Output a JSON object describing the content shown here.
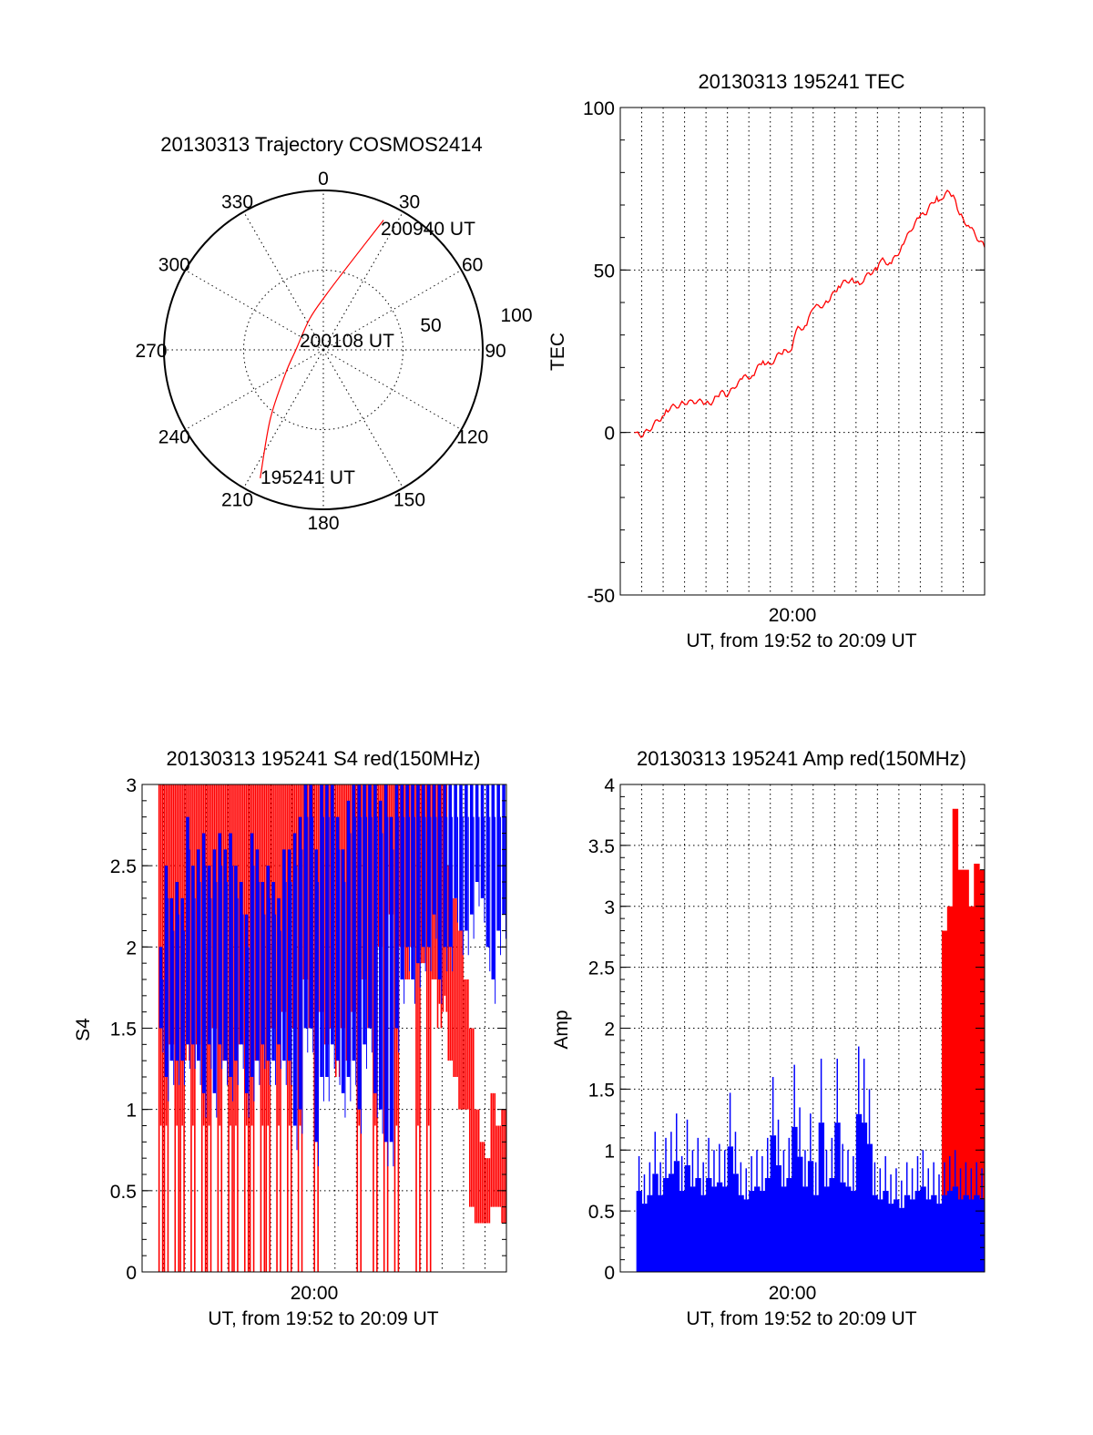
{
  "chart_data": [
    {
      "type": "polar",
      "title": "20130313 Trajectory COSMOS2414",
      "azimuth_labels": [
        "0",
        "30",
        "60",
        "90",
        "120",
        "150",
        "180",
        "210",
        "240",
        "270",
        "300",
        "330"
      ],
      "radial_labels": [
        "50",
        "100"
      ],
      "rlim": [
        0,
        100
      ],
      "annotations": [
        "200940 UT",
        "200108 UT",
        "195241 UT"
      ],
      "trajectory": {
        "color": "#ff0000",
        "az_deg": [
          206.2,
          217.5,
          238,
          271,
          336,
          3,
          16.8,
          24.9
        ],
        "r": [
          89.7,
          54.7,
          28,
          17.1,
          21.2,
          34.7,
          56,
          89.7
        ]
      }
    },
    {
      "type": "line",
      "title": "20130313 195241 TEC",
      "ylabel": "TEC",
      "xlabel": "UT, from 19:52 to 20:09 UT",
      "x_tick_label": "20:00",
      "x_units": "minutes after 19:52",
      "xlim": [
        0,
        17
      ],
      "ylim": [
        -50,
        100
      ],
      "y_ticks": [
        "100",
        "50",
        "0",
        "-50"
      ],
      "grid": true,
      "series": [
        {
          "name": "TEC",
          "color": "#ff0000",
          "x": [
            0.66,
            0.97,
            1.97,
            2.14,
            2.96,
            3.27,
            3.98,
            4.33,
            4.68,
            4.99,
            5.6,
            6.16,
            6.66,
            6.98,
            7.64,
            8.0,
            8.21,
            8.7,
            8.98,
            9.69,
            10.18,
            10.82,
            11.17,
            11.52,
            11.99,
            12.16,
            12.65,
            13.22,
            13.85,
            14.2,
            14.77,
            14.91,
            15.26,
            15.54,
            15.83,
            16.32,
            17.0
          ],
          "y": [
            0,
            -1.5,
            5,
            7,
            9,
            10,
            9,
            9.5,
            12.5,
            11,
            16.5,
            17.5,
            22,
            21,
            25.5,
            25.5,
            31.5,
            33,
            38,
            40,
            45,
            47.5,
            45.5,
            49,
            50,
            53,
            52,
            58,
            66,
            67,
            72.5,
            71.5,
            74.5,
            73,
            67,
            63,
            57
          ]
        }
      ]
    },
    {
      "type": "bar",
      "title": "20130313 195241 S4 red(150MHz)",
      "ylabel": "S4",
      "xlabel": "UT, from 19:52 to 20:09 UT",
      "x_tick_label": "20:00",
      "x_units": "minutes after 19:52",
      "xlim": [
        0,
        17
      ],
      "ylim": [
        0,
        3
      ],
      "y_ticks": [
        "3",
        "2.5",
        "2",
        "1.5",
        "1",
        "0.5",
        "0"
      ],
      "grid": true,
      "bin_start": 0.75,
      "bin_step": 0.25,
      "series": [
        {
          "name": "red",
          "color": "#ff0000",
          "ranges": [
            [
              0,
              3
            ],
            [
              0,
              3
            ],
            [
              1.4,
              3
            ],
            [
              0,
              3
            ],
            [
              0,
              3
            ],
            [
              1.3,
              3
            ],
            [
              0,
              3
            ],
            [
              1.4,
              3
            ],
            [
              0,
              3
            ],
            [
              0,
              3
            ],
            [
              1.5,
              3
            ],
            [
              0,
              3
            ],
            [
              1.3,
              3
            ],
            [
              0,
              3
            ],
            [
              0,
              3
            ],
            [
              1.4,
              3
            ],
            [
              0,
              3
            ],
            [
              0,
              3
            ],
            [
              1.3,
              3
            ],
            [
              0,
              3
            ],
            [
              0,
              3
            ],
            [
              1.5,
              3
            ],
            [
              0,
              3
            ],
            [
              1.6,
              3
            ],
            [
              0,
              3
            ],
            [
              1.5,
              3
            ],
            [
              0,
              3
            ],
            [
              1.8,
              3
            ],
            [
              1.5,
              3
            ],
            [
              0,
              3
            ],
            [
              1.6,
              3
            ],
            [
              1.4,
              3
            ],
            [
              1.5,
              3
            ],
            [
              1.2,
              3
            ],
            [
              1.5,
              3
            ],
            [
              1.3,
              3
            ],
            [
              1.6,
              3
            ],
            [
              0,
              3
            ],
            [
              1.8,
              3
            ],
            [
              1.5,
              3
            ],
            [
              0,
              3
            ],
            [
              2.0,
              3
            ],
            [
              0,
              3
            ],
            [
              2.2,
              3
            ],
            [
              0,
              3
            ],
            [
              2.0,
              3
            ],
            [
              1.8,
              3
            ],
            [
              2.0,
              3
            ],
            [
              0,
              3
            ],
            [
              1.9,
              3
            ],
            [
              0,
              3
            ],
            [
              1.8,
              3
            ],
            [
              1.5,
              3
            ],
            [
              1.6,
              3
            ],
            [
              1.3,
              2.5
            ],
            [
              1.2,
              2.3
            ],
            [
              1.0,
              2.1
            ],
            [
              1.0,
              1.8
            ],
            [
              0.4,
              1.5
            ],
            [
              0.3,
              1.0
            ],
            [
              0.3,
              0.8
            ],
            [
              0.3,
              0.7
            ],
            [
              0.4,
              1.1
            ],
            [
              0.4,
              0.9
            ],
            [
              0.3,
              1.0
            ]
          ]
        },
        {
          "name": "blue",
          "color": "#0000ff",
          "ranges": [
            [
              1.5,
              2.0
            ],
            [
              1.2,
              2.5
            ],
            [
              1.3,
              2.3
            ],
            [
              1.3,
              2.4
            ],
            [
              1.3,
              2.3
            ],
            [
              1.4,
              2.8
            ],
            [
              1.4,
              2.5
            ],
            [
              1.3,
              2.6
            ],
            [
              1.1,
              2.7
            ],
            [
              1.4,
              2.5
            ],
            [
              1.1,
              2.6
            ],
            [
              1.4,
              2.7
            ],
            [
              1.3,
              2.6
            ],
            [
              1.2,
              2.7
            ],
            [
              1.3,
              2.5
            ],
            [
              1.4,
              2.4
            ],
            [
              1.1,
              2.2
            ],
            [
              1.2,
              2.7
            ],
            [
              1.3,
              2.6
            ],
            [
              1.4,
              2.4
            ],
            [
              1.3,
              2.5
            ],
            [
              1.3,
              2.4
            ],
            [
              1.4,
              2.3
            ],
            [
              1.3,
              2.6
            ],
            [
              1.3,
              2.6
            ],
            [
              0.9,
              2.7
            ],
            [
              1.0,
              2.8
            ],
            [
              1.5,
              3.0
            ],
            [
              1.5,
              3.0
            ],
            [
              0.8,
              2.6
            ],
            [
              1.2,
              3.0
            ],
            [
              1.2,
              3.0
            ],
            [
              1.4,
              3.0
            ],
            [
              1.3,
              2.8
            ],
            [
              1.1,
              2.6
            ],
            [
              1.2,
              2.9
            ],
            [
              1.3,
              3.0
            ],
            [
              1.0,
              3.0
            ],
            [
              1.4,
              3.0
            ],
            [
              1.5,
              3.0
            ],
            [
              1.1,
              3.0
            ],
            [
              1.0,
              2.9
            ],
            [
              0.8,
              3.0
            ],
            [
              0.8,
              2.8
            ],
            [
              1.5,
              3.0
            ],
            [
              1.8,
              3.0
            ],
            [
              2.0,
              3.0
            ],
            [
              1.8,
              3.0
            ],
            [
              1.9,
              3.0
            ],
            [
              2.0,
              3.0
            ],
            [
              2.0,
              3.0
            ],
            [
              2.2,
              3.0
            ],
            [
              1.8,
              3.0
            ],
            [
              2.0,
              3.0
            ],
            [
              2.0,
              3.0
            ],
            [
              2.3,
              3.0
            ],
            [
              2.1,
              3.0
            ],
            [
              2.1,
              3.0
            ],
            [
              2.2,
              3.0
            ],
            [
              2.4,
              3.0
            ],
            [
              2.3,
              3.0
            ],
            [
              2.0,
              3.0
            ],
            [
              1.8,
              3.0
            ],
            [
              2.1,
              3.0
            ],
            [
              2.2,
              3.0
            ]
          ]
        }
      ]
    },
    {
      "type": "bar",
      "title": "20130313 195241 Amp red(150MHz)",
      "ylabel": "Amp",
      "xlabel": "UT, from 19:52 to 20:09 UT",
      "x_tick_label": "20:00",
      "x_units": "minutes after 19:52",
      "xlim": [
        0,
        17
      ],
      "ylim": [
        0,
        4
      ],
      "y_ticks": [
        "4",
        "3.5",
        "3",
        "2.5",
        "2",
        "1.5",
        "1",
        "0.5",
        "0"
      ],
      "grid": true,
      "bin_step": 0.25,
      "series": [
        {
          "name": "red",
          "color": "#ff0000",
          "bin_start": 15.0,
          "values": [
            2.8,
            3.0,
            3.8,
            3.3,
            3.3,
            3.0,
            3.35,
            3.3
          ]
        },
        {
          "name": "blue",
          "color": "#0000ff",
          "bin_start": 0.75,
          "values": [
            0.95,
            0.8,
            0.9,
            1.15,
            0.9,
            1.1,
            1.15,
            1.3,
            0.95,
            1.25,
            1.0,
            1.1,
            0.9,
            1.1,
            1.0,
            1.05,
            1.0,
            1.47,
            1.15,
            0.9,
            0.85,
            0.95,
            1.0,
            0.95,
            1.1,
            1.6,
            1.25,
            1.0,
            1.1,
            1.7,
            1.35,
            1.0,
            1.3,
            0.9,
            1.75,
            1.0,
            1.1,
            1.75,
            1.05,
            1.0,
            0.95,
            1.85,
            1.75,
            1.5,
            0.9,
            0.85,
            0.95,
            0.8,
            0.85,
            0.75,
            0.9,
            0.85,
            0.95,
            1.0,
            0.85,
            0.9,
            0.8,
            0.9,
            0.95,
            1.0,
            0.85,
            0.9,
            0.85,
            0.9,
            0.85
          ]
        }
      ]
    }
  ]
}
